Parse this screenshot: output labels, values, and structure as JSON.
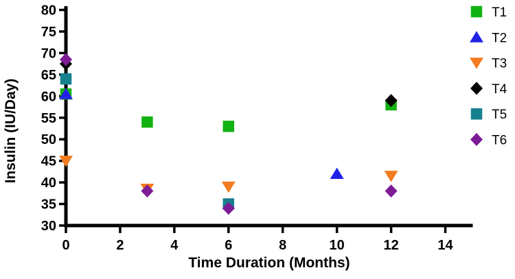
{
  "chart_data": {
    "type": "scatter",
    "title": "",
    "xlabel": "Time Duration (Months)",
    "ylabel": "Insulin (IU/Day)",
    "xlim": [
      0,
      15
    ],
    "ylim": [
      30,
      80
    ],
    "xticks": [
      0,
      2,
      4,
      6,
      8,
      10,
      12,
      14
    ],
    "yticks": [
      30,
      35,
      40,
      45,
      50,
      55,
      60,
      65,
      70,
      75,
      80
    ],
    "grid": false,
    "legend_position": "right",
    "axis_color": "#000000",
    "background_color": "#ffffff",
    "series": [
      {
        "name": "T1",
        "marker": "square",
        "color": "#12B212",
        "points": [
          [
            0,
            60.5
          ],
          [
            3,
            54
          ],
          [
            6,
            53
          ],
          [
            12,
            58
          ]
        ]
      },
      {
        "name": "T2",
        "marker": "triangle-up",
        "color": "#2222E6",
        "points": [
          [
            0,
            60.5
          ],
          [
            10,
            42
          ]
        ]
      },
      {
        "name": "T3",
        "marker": "triangle-down",
        "color": "#F47C20",
        "points": [
          [
            0,
            45
          ],
          [
            3,
            38.5
          ],
          [
            6,
            39
          ],
          [
            12,
            41.5
          ]
        ]
      },
      {
        "name": "T4",
        "marker": "diamond",
        "color": "#000000",
        "points": [
          [
            0,
            67.5
          ],
          [
            12,
            59
          ]
        ]
      },
      {
        "name": "T5",
        "marker": "square",
        "color": "#16808E",
        "points": [
          [
            0,
            64
          ],
          [
            6,
            35
          ]
        ]
      },
      {
        "name": "T6",
        "marker": "diamond",
        "color": "#7C1D96",
        "points": [
          [
            0,
            68.5
          ],
          [
            3,
            38
          ],
          [
            6,
            34
          ],
          [
            12,
            38
          ]
        ]
      }
    ]
  }
}
